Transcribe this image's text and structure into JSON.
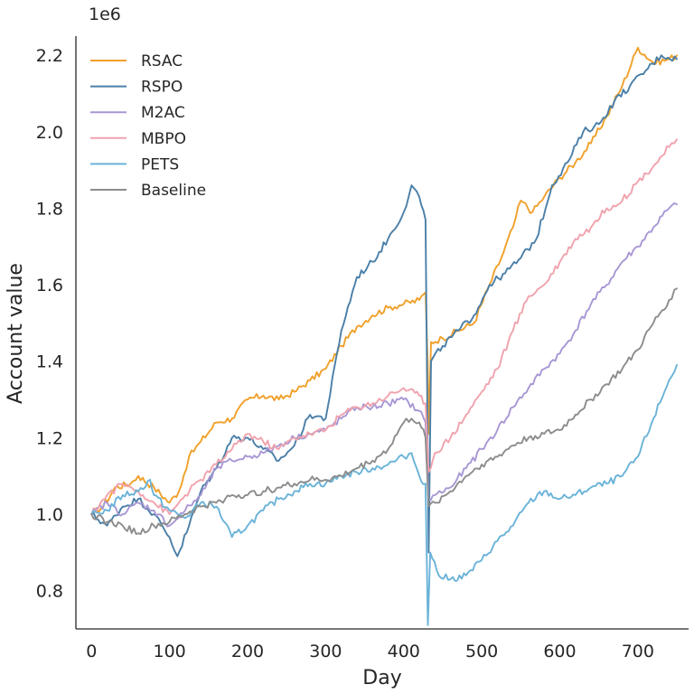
{
  "chart_data": {
    "type": "line",
    "xlabel": "Day",
    "ylabel": "Account value",
    "y_offset_label": "1e6",
    "xlim": [
      -20,
      765
    ],
    "ylim": [
      0.7,
      2.25
    ],
    "xticks": [
      0,
      100,
      200,
      300,
      400,
      500,
      600,
      700
    ],
    "yticks": [
      0.8,
      1.0,
      1.2,
      1.4,
      1.6,
      1.8,
      2.0,
      2.2
    ],
    "ytick_labels": [
      "0.8",
      "1.0",
      "1.2",
      "1.4",
      "1.6",
      "1.8",
      "2.0",
      "2.2"
    ],
    "grid": false,
    "legend_position": "top-left",
    "series": [
      {
        "name": "RSAC",
        "color": "#f0a02a",
        "points": [
          [
            0,
            1.0
          ],
          [
            15,
            1.02
          ],
          [
            30,
            1.07
          ],
          [
            50,
            1.08
          ],
          [
            60,
            1.1
          ],
          [
            80,
            1.07
          ],
          [
            100,
            1.03
          ],
          [
            112,
            1.06
          ],
          [
            125,
            1.15
          ],
          [
            140,
            1.19
          ],
          [
            160,
            1.24
          ],
          [
            180,
            1.25
          ],
          [
            200,
            1.3
          ],
          [
            220,
            1.31
          ],
          [
            240,
            1.3
          ],
          [
            260,
            1.32
          ],
          [
            280,
            1.35
          ],
          [
            300,
            1.38
          ],
          [
            320,
            1.44
          ],
          [
            340,
            1.49
          ],
          [
            360,
            1.52
          ],
          [
            380,
            1.54
          ],
          [
            400,
            1.55
          ],
          [
            420,
            1.56
          ],
          [
            428,
            1.58
          ],
          [
            431,
            1.38
          ],
          [
            432,
            1.21
          ],
          [
            435,
            1.45
          ],
          [
            450,
            1.46
          ],
          [
            470,
            1.48
          ],
          [
            490,
            1.5
          ],
          [
            510,
            1.6
          ],
          [
            525,
            1.67
          ],
          [
            540,
            1.75
          ],
          [
            550,
            1.82
          ],
          [
            565,
            1.79
          ],
          [
            580,
            1.83
          ],
          [
            600,
            1.88
          ],
          [
            620,
            1.92
          ],
          [
            640,
            1.97
          ],
          [
            660,
            2.04
          ],
          [
            680,
            2.12
          ],
          [
            700,
            2.22
          ],
          [
            720,
            2.18
          ],
          [
            740,
            2.19
          ],
          [
            750,
            2.2
          ]
        ]
      },
      {
        "name": "RSPO",
        "color": "#4a7fa8",
        "points": [
          [
            0,
            1.0
          ],
          [
            20,
            0.97
          ],
          [
            40,
            1.02
          ],
          [
            60,
            1.04
          ],
          [
            80,
            1.0
          ],
          [
            100,
            0.94
          ],
          [
            110,
            0.89
          ],
          [
            125,
            0.97
          ],
          [
            140,
            1.06
          ],
          [
            160,
            1.12
          ],
          [
            180,
            1.2
          ],
          [
            200,
            1.2
          ],
          [
            220,
            1.17
          ],
          [
            240,
            1.14
          ],
          [
            260,
            1.18
          ],
          [
            280,
            1.26
          ],
          [
            300,
            1.25
          ],
          [
            320,
            1.48
          ],
          [
            340,
            1.62
          ],
          [
            360,
            1.66
          ],
          [
            380,
            1.72
          ],
          [
            400,
            1.79
          ],
          [
            410,
            1.86
          ],
          [
            420,
            1.83
          ],
          [
            428,
            1.77
          ],
          [
            432,
            0.9
          ],
          [
            435,
            1.4
          ],
          [
            450,
            1.44
          ],
          [
            470,
            1.48
          ],
          [
            490,
            1.52
          ],
          [
            510,
            1.6
          ],
          [
            530,
            1.63
          ],
          [
            550,
            1.67
          ],
          [
            570,
            1.72
          ],
          [
            590,
            1.86
          ],
          [
            610,
            1.92
          ],
          [
            630,
            2.0
          ],
          [
            650,
            2.02
          ],
          [
            670,
            2.08
          ],
          [
            690,
            2.12
          ],
          [
            710,
            2.16
          ],
          [
            730,
            2.2
          ],
          [
            750,
            2.19
          ]
        ]
      },
      {
        "name": "M2AC",
        "color": "#a897d4",
        "points": [
          [
            0,
            1.0
          ],
          [
            20,
            1.03
          ],
          [
            40,
            1.0
          ],
          [
            60,
            1.03
          ],
          [
            80,
            1.01
          ],
          [
            100,
            0.97
          ],
          [
            120,
            1.01
          ],
          [
            140,
            1.05
          ],
          [
            160,
            1.12
          ],
          [
            180,
            1.14
          ],
          [
            200,
            1.15
          ],
          [
            220,
            1.16
          ],
          [
            240,
            1.18
          ],
          [
            260,
            1.2
          ],
          [
            280,
            1.21
          ],
          [
            300,
            1.22
          ],
          [
            320,
            1.25
          ],
          [
            340,
            1.28
          ],
          [
            360,
            1.28
          ],
          [
            380,
            1.29
          ],
          [
            400,
            1.3
          ],
          [
            420,
            1.27
          ],
          [
            428,
            1.24
          ],
          [
            432,
            1.04
          ],
          [
            440,
            1.05
          ],
          [
            460,
            1.07
          ],
          [
            480,
            1.12
          ],
          [
            500,
            1.17
          ],
          [
            520,
            1.22
          ],
          [
            540,
            1.28
          ],
          [
            560,
            1.33
          ],
          [
            580,
            1.38
          ],
          [
            600,
            1.42
          ],
          [
            620,
            1.48
          ],
          [
            640,
            1.55
          ],
          [
            660,
            1.6
          ],
          [
            680,
            1.66
          ],
          [
            700,
            1.7
          ],
          [
            720,
            1.75
          ],
          [
            740,
            1.8
          ],
          [
            750,
            1.81
          ]
        ]
      },
      {
        "name": "MBPO",
        "color": "#f0a2ad",
        "points": [
          [
            0,
            1.0
          ],
          [
            20,
            1.05
          ],
          [
            40,
            1.08
          ],
          [
            60,
            1.06
          ],
          [
            80,
            1.03
          ],
          [
            100,
            1.0
          ],
          [
            120,
            1.05
          ],
          [
            140,
            1.09
          ],
          [
            160,
            1.13
          ],
          [
            180,
            1.17
          ],
          [
            200,
            1.21
          ],
          [
            220,
            1.19
          ],
          [
            240,
            1.17
          ],
          [
            260,
            1.2
          ],
          [
            280,
            1.21
          ],
          [
            300,
            1.22
          ],
          [
            320,
            1.26
          ],
          [
            340,
            1.28
          ],
          [
            360,
            1.29
          ],
          [
            380,
            1.31
          ],
          [
            400,
            1.33
          ],
          [
            420,
            1.31
          ],
          [
            428,
            1.29
          ],
          [
            432,
            1.11
          ],
          [
            440,
            1.16
          ],
          [
            460,
            1.2
          ],
          [
            480,
            1.26
          ],
          [
            500,
            1.32
          ],
          [
            520,
            1.38
          ],
          [
            540,
            1.48
          ],
          [
            560,
            1.57
          ],
          [
            580,
            1.6
          ],
          [
            600,
            1.66
          ],
          [
            620,
            1.72
          ],
          [
            640,
            1.75
          ],
          [
            660,
            1.8
          ],
          [
            680,
            1.82
          ],
          [
            700,
            1.87
          ],
          [
            720,
            1.91
          ],
          [
            740,
            1.96
          ],
          [
            750,
            1.98
          ]
        ]
      },
      {
        "name": "PETS",
        "color": "#6ab3d8",
        "points": [
          [
            0,
            1.0
          ],
          [
            20,
            1.01
          ],
          [
            40,
            1.05
          ],
          [
            60,
            1.06
          ],
          [
            75,
            1.09
          ],
          [
            80,
            1.05
          ],
          [
            100,
            1.01
          ],
          [
            120,
            0.99
          ],
          [
            140,
            1.03
          ],
          [
            160,
            1.02
          ],
          [
            180,
            0.94
          ],
          [
            200,
            0.97
          ],
          [
            220,
            1.01
          ],
          [
            240,
            1.04
          ],
          [
            260,
            1.06
          ],
          [
            280,
            1.08
          ],
          [
            300,
            1.08
          ],
          [
            320,
            1.1
          ],
          [
            340,
            1.11
          ],
          [
            360,
            1.12
          ],
          [
            380,
            1.13
          ],
          [
            400,
            1.15
          ],
          [
            410,
            1.16
          ],
          [
            420,
            1.1
          ],
          [
            428,
            1.08
          ],
          [
            431,
            0.71
          ],
          [
            434,
            0.9
          ],
          [
            445,
            0.84
          ],
          [
            460,
            0.83
          ],
          [
            480,
            0.84
          ],
          [
            500,
            0.88
          ],
          [
            520,
            0.93
          ],
          [
            540,
            0.97
          ],
          [
            560,
            1.03
          ],
          [
            580,
            1.06
          ],
          [
            600,
            1.04
          ],
          [
            620,
            1.05
          ],
          [
            640,
            1.07
          ],
          [
            660,
            1.08
          ],
          [
            680,
            1.1
          ],
          [
            700,
            1.15
          ],
          [
            720,
            1.25
          ],
          [
            740,
            1.35
          ],
          [
            750,
            1.39
          ]
        ]
      },
      {
        "name": "Baseline",
        "color": "#8c8c8c",
        "points": [
          [
            0,
            1.0
          ],
          [
            20,
            0.98
          ],
          [
            40,
            0.97
          ],
          [
            60,
            0.95
          ],
          [
            80,
            0.97
          ],
          [
            100,
            0.98
          ],
          [
            120,
            1.0
          ],
          [
            140,
            1.02
          ],
          [
            160,
            1.03
          ],
          [
            180,
            1.05
          ],
          [
            200,
            1.05
          ],
          [
            220,
            1.06
          ],
          [
            240,
            1.07
          ],
          [
            260,
            1.08
          ],
          [
            280,
            1.09
          ],
          [
            300,
            1.09
          ],
          [
            320,
            1.1
          ],
          [
            340,
            1.12
          ],
          [
            360,
            1.14
          ],
          [
            380,
            1.17
          ],
          [
            400,
            1.24
          ],
          [
            410,
            1.25
          ],
          [
            420,
            1.24
          ],
          [
            428,
            1.2
          ],
          [
            432,
            1.02
          ],
          [
            440,
            1.03
          ],
          [
            460,
            1.06
          ],
          [
            480,
            1.1
          ],
          [
            500,
            1.13
          ],
          [
            520,
            1.15
          ],
          [
            540,
            1.18
          ],
          [
            560,
            1.2
          ],
          [
            580,
            1.21
          ],
          [
            600,
            1.22
          ],
          [
            620,
            1.26
          ],
          [
            640,
            1.3
          ],
          [
            660,
            1.34
          ],
          [
            680,
            1.38
          ],
          [
            700,
            1.43
          ],
          [
            720,
            1.5
          ],
          [
            740,
            1.56
          ],
          [
            750,
            1.59
          ]
        ]
      }
    ]
  }
}
